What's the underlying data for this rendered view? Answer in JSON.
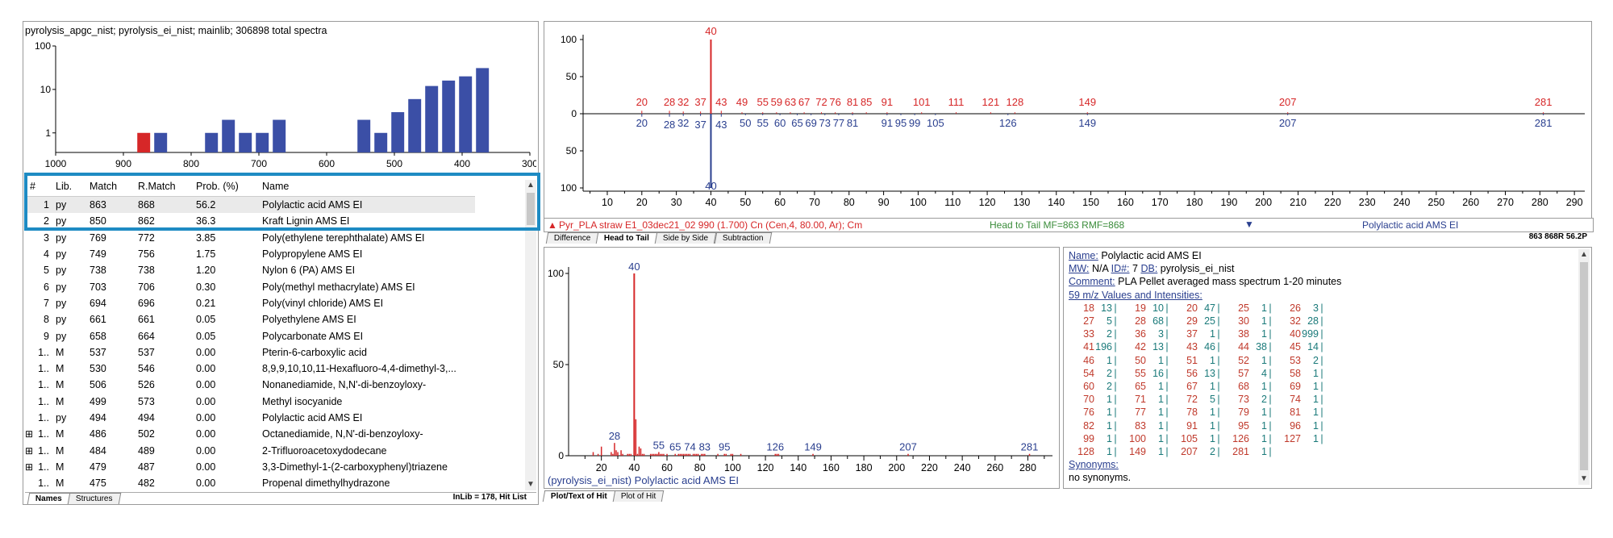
{
  "library_header": "pyrolysis_apgc_nist; pyrolysis_ei_nist; mainlib;  306898 total spectra",
  "histogram": {
    "y_ticks": [
      "100",
      "10",
      "1"
    ],
    "x_ticks": [
      "1000",
      "900",
      "800",
      "700",
      "600",
      "500",
      "400",
      "300"
    ],
    "bars": [
      {
        "x": 870,
        "value": 1,
        "color": "#d62728"
      },
      {
        "x": 845,
        "value": 1,
        "color": "#3b4fa6"
      },
      {
        "x": 770,
        "value": 1,
        "color": "#3b4fa6"
      },
      {
        "x": 745,
        "value": 2,
        "color": "#3b4fa6"
      },
      {
        "x": 720,
        "value": 1,
        "color": "#3b4fa6"
      },
      {
        "x": 695,
        "value": 1,
        "color": "#3b4fa6"
      },
      {
        "x": 670,
        "value": 2,
        "color": "#3b4fa6"
      },
      {
        "x": 545,
        "value": 2,
        "color": "#3b4fa6"
      },
      {
        "x": 520,
        "value": 1,
        "color": "#3b4fa6"
      },
      {
        "x": 495,
        "value": 3,
        "color": "#3b4fa6"
      },
      {
        "x": 470,
        "value": 6,
        "color": "#3b4fa6"
      },
      {
        "x": 445,
        "value": 12,
        "color": "#3b4fa6"
      },
      {
        "x": 420,
        "value": 16,
        "color": "#3b4fa6"
      },
      {
        "x": 395,
        "value": 20,
        "color": "#3b4fa6"
      },
      {
        "x": 370,
        "value": 31,
        "color": "#3b4fa6"
      }
    ]
  },
  "hit_table": {
    "headers": [
      "#",
      "Lib.",
      "Match",
      "R.Match",
      "Prob. (%)",
      "Name"
    ],
    "rows": [
      {
        "n": "1",
        "lib": "py",
        "match": "863",
        "rmatch": "868",
        "prob": "56.2",
        "name": "Polylactic acid AMS EI",
        "exp": ""
      },
      {
        "n": "2",
        "lib": "py",
        "match": "850",
        "rmatch": "862",
        "prob": "36.3",
        "name": "Kraft Lignin AMS EI",
        "exp": ""
      },
      {
        "n": "3",
        "lib": "py",
        "match": "769",
        "rmatch": "772",
        "prob": "3.85",
        "name": "Poly(ethylene terephthalate) AMS EI",
        "exp": ""
      },
      {
        "n": "4",
        "lib": "py",
        "match": "749",
        "rmatch": "756",
        "prob": "1.75",
        "name": "Polypropylene AMS EI",
        "exp": ""
      },
      {
        "n": "5",
        "lib": "py",
        "match": "738",
        "rmatch": "738",
        "prob": "1.20",
        "name": "Nylon 6 (PA) AMS EI",
        "exp": ""
      },
      {
        "n": "6",
        "lib": "py",
        "match": "703",
        "rmatch": "706",
        "prob": "0.30",
        "name": "Poly(methyl methacrylate) AMS EI",
        "exp": ""
      },
      {
        "n": "7",
        "lib": "py",
        "match": "694",
        "rmatch": "696",
        "prob": "0.21",
        "name": "Poly(vinyl chloride) AMS EI",
        "exp": ""
      },
      {
        "n": "8",
        "lib": "py",
        "match": "661",
        "rmatch": "661",
        "prob": "0.05",
        "name": "Polyethylene AMS EI",
        "exp": ""
      },
      {
        "n": "9",
        "lib": "py",
        "match": "658",
        "rmatch": "664",
        "prob": "0.05",
        "name": "Polycarbonate AMS EI",
        "exp": ""
      },
      {
        "n": "1..",
        "lib": "M",
        "match": "537",
        "rmatch": "537",
        "prob": "0.00",
        "name": "Pterin-6-carboxylic acid",
        "exp": ""
      },
      {
        "n": "1..",
        "lib": "M",
        "match": "530",
        "rmatch": "546",
        "prob": "0.00",
        "name": "8,9,9,10,10,11-Hexafluoro-4,4-dimethyl-3,...",
        "exp": ""
      },
      {
        "n": "1..",
        "lib": "M",
        "match": "506",
        "rmatch": "526",
        "prob": "0.00",
        "name": "Nonanediamide, N,N'-di-benzoyloxy-",
        "exp": ""
      },
      {
        "n": "1..",
        "lib": "M",
        "match": "499",
        "rmatch": "573",
        "prob": "0.00",
        "name": "Methyl isocyanide",
        "exp": ""
      },
      {
        "n": "1..",
        "lib": "py",
        "match": "494",
        "rmatch": "494",
        "prob": "0.00",
        "name": "Polylactic acid AMS EI",
        "exp": ""
      },
      {
        "n": "1..",
        "lib": "M",
        "match": "486",
        "rmatch": "502",
        "prob": "0.00",
        "name": "Octanediamide, N,N'-di-benzoyloxy-",
        "exp": "⊞"
      },
      {
        "n": "1..",
        "lib": "M",
        "match": "484",
        "rmatch": "489",
        "prob": "0.00",
        "name": "2-Trifluoroacetoxydodecane",
        "exp": "⊞"
      },
      {
        "n": "1..",
        "lib": "M",
        "match": "479",
        "rmatch": "487",
        "prob": "0.00",
        "name": "3,3-Dimethyl-1-(2-carboxyphenyl)triazene",
        "exp": "⊞"
      },
      {
        "n": "1..",
        "lib": "M",
        "match": "475",
        "rmatch": "482",
        "prob": "0.00",
        "name": "Propenal dimethylhydrazone",
        "exp": ""
      }
    ]
  },
  "left_tabs": [
    "Names",
    "Structures"
  ],
  "left_status": "InLib = 178, Hit List",
  "head_to_tail": {
    "top_peaks": [
      {
        "mz": 20,
        "h": 4
      },
      {
        "mz": 28,
        "h": 4
      },
      {
        "mz": 32,
        "h": 3
      },
      {
        "mz": 37,
        "h": 3
      },
      {
        "mz": 40,
        "h": 100
      },
      {
        "mz": 43,
        "h": 4
      },
      {
        "mz": 49,
        "h": 2
      },
      {
        "mz": 55,
        "h": 2
      },
      {
        "mz": 59,
        "h": 2
      },
      {
        "mz": 63,
        "h": 2
      },
      {
        "mz": 67,
        "h": 2
      },
      {
        "mz": 72,
        "h": 2
      },
      {
        "mz": 76,
        "h": 2
      },
      {
        "mz": 81,
        "h": 2
      },
      {
        "mz": 85,
        "h": 2
      },
      {
        "mz": 91,
        "h": 2
      },
      {
        "mz": 101,
        "h": 2
      },
      {
        "mz": 111,
        "h": 2
      },
      {
        "mz": 121,
        "h": 2
      },
      {
        "mz": 128,
        "h": 2
      },
      {
        "mz": 149,
        "h": 2
      },
      {
        "mz": 207,
        "h": 2
      },
      {
        "mz": 281,
        "h": 2
      }
    ],
    "top_labels": [
      "20",
      "28",
      "32",
      "37",
      "40",
      "43",
      "49",
      "55",
      "59",
      "63",
      "67",
      "72",
      "76",
      "81",
      "85",
      "91",
      "101",
      "111",
      "121",
      "128",
      "149",
      "207",
      "281"
    ],
    "bottom_peaks": [
      {
        "mz": 20,
        "h": 4
      },
      {
        "mz": 28,
        "h": 4
      },
      {
        "mz": 32,
        "h": 3
      },
      {
        "mz": 37,
        "h": 3
      },
      {
        "mz": 40,
        "h": 100
      },
      {
        "mz": 43,
        "h": 4
      },
      {
        "mz": 50,
        "h": 2
      },
      {
        "mz": 55,
        "h": 2
      },
      {
        "mz": 60,
        "h": 2
      },
      {
        "mz": 65,
        "h": 2
      },
      {
        "mz": 69,
        "h": 2
      },
      {
        "mz": 73,
        "h": 2
      },
      {
        "mz": 77,
        "h": 2
      },
      {
        "mz": 81,
        "h": 2
      },
      {
        "mz": 91,
        "h": 2
      },
      {
        "mz": 95,
        "h": 2
      },
      {
        "mz": 99,
        "h": 2
      },
      {
        "mz": 105,
        "h": 2
      },
      {
        "mz": 126,
        "h": 2
      },
      {
        "mz": 149,
        "h": 2
      },
      {
        "mz": 207,
        "h": 2
      },
      {
        "mz": 281,
        "h": 2
      }
    ],
    "bottom_labels": [
      "20",
      "28",
      "32",
      "37",
      "40",
      "43",
      "50",
      "55",
      "60",
      "65",
      "69",
      "73",
      "77",
      "81",
      "91",
      "95",
      "99",
      "105",
      "126",
      "149",
      "207",
      "281"
    ],
    "y_ticks": [
      "100",
      "50",
      "0",
      "50",
      "100"
    ],
    "x_ticks": [
      "10",
      "20",
      "30",
      "40",
      "50",
      "60",
      "70",
      "80",
      "90",
      "100",
      "110",
      "120",
      "130",
      "140",
      "150",
      "160",
      "170",
      "180",
      "190",
      "200",
      "210",
      "220",
      "230",
      "240",
      "250",
      "260",
      "270",
      "280",
      "290"
    ]
  },
  "status_bar": {
    "unknown": "Pyr_PLA straw E1_03dec21_02  990 (1.700) Cn (Cen,4, 80.00, Ar); Cm",
    "match_info": "Head to Tail MF=863 RMF=868",
    "library": "Polylactic acid AMS EI"
  },
  "ht_tabs": [
    "Difference",
    "Head to Tail",
    "Side by Side",
    "Subtraction"
  ],
  "ht_right_status": "863 868R 56.2P",
  "hit_plot": {
    "y_ticks": [
      "100",
      "50",
      "0"
    ],
    "x_ticks": [
      "20",
      "40",
      "60",
      "80",
      "100",
      "120",
      "140",
      "160",
      "180",
      "200",
      "220",
      "240",
      "260",
      "280"
    ],
    "peaks": [
      {
        "mz": 15,
        "h": 2
      },
      {
        "mz": 18,
        "h": 1
      },
      {
        "mz": 20,
        "h": 5
      },
      {
        "mz": 26,
        "h": 2
      },
      {
        "mz": 27,
        "h": 1
      },
      {
        "mz": 28,
        "h": 7
      },
      {
        "mz": 29,
        "h": 3
      },
      {
        "mz": 30,
        "h": 2
      },
      {
        "mz": 32,
        "h": 3
      },
      {
        "mz": 33,
        "h": 1
      },
      {
        "mz": 36,
        "h": 1
      },
      {
        "mz": 37,
        "h": 1
      },
      {
        "mz": 38,
        "h": 1
      },
      {
        "mz": 40,
        "h": 100
      },
      {
        "mz": 41,
        "h": 20
      },
      {
        "mz": 42,
        "h": 1
      },
      {
        "mz": 43,
        "h": 5
      },
      {
        "mz": 44,
        "h": 4
      },
      {
        "mz": 45,
        "h": 1
      },
      {
        "mz": 46,
        "h": 1
      },
      {
        "mz": 50,
        "h": 1
      },
      {
        "mz": 51,
        "h": 1
      },
      {
        "mz": 52,
        "h": 1
      },
      {
        "mz": 53,
        "h": 1
      },
      {
        "mz": 54,
        "h": 1
      },
      {
        "mz": 55,
        "h": 2
      },
      {
        "mz": 56,
        "h": 1
      },
      {
        "mz": 57,
        "h": 1
      },
      {
        "mz": 58,
        "h": 1
      },
      {
        "mz": 60,
        "h": 1
      },
      {
        "mz": 65,
        "h": 1
      },
      {
        "mz": 67,
        "h": 1
      },
      {
        "mz": 68,
        "h": 1
      },
      {
        "mz": 69,
        "h": 1
      },
      {
        "mz": 70,
        "h": 1
      },
      {
        "mz": 71,
        "h": 1
      },
      {
        "mz": 72,
        "h": 1
      },
      {
        "mz": 73,
        "h": 1
      },
      {
        "mz": 74,
        "h": 1
      },
      {
        "mz": 76,
        "h": 1
      },
      {
        "mz": 77,
        "h": 1
      },
      {
        "mz": 78,
        "h": 1
      },
      {
        "mz": 79,
        "h": 1
      },
      {
        "mz": 81,
        "h": 1
      },
      {
        "mz": 82,
        "h": 1
      },
      {
        "mz": 83,
        "h": 1
      },
      {
        "mz": 91,
        "h": 1
      },
      {
        "mz": 95,
        "h": 1
      },
      {
        "mz": 96,
        "h": 1
      },
      {
        "mz": 99,
        "h": 1
      },
      {
        "mz": 100,
        "h": 1
      },
      {
        "mz": 105,
        "h": 1
      },
      {
        "mz": 126,
        "h": 1
      },
      {
        "mz": 127,
        "h": 1
      },
      {
        "mz": 128,
        "h": 1
      },
      {
        "mz": 149,
        "h": 1
      },
      {
        "mz": 207,
        "h": 1
      },
      {
        "mz": 281,
        "h": 1
      }
    ],
    "labels": [
      "40",
      "28",
      "55",
      "65",
      "74",
      "83",
      "95",
      "126",
      "149",
      "207",
      "281"
    ],
    "caption": "(pyrolysis_ei_nist) Polylactic acid AMS EI"
  },
  "hit_tabs": [
    "Plot/Text of Hit",
    "Plot of Hit"
  ],
  "hit_info": {
    "name_label": "Name:",
    "name": "Polylactic acid AMS EI",
    "mw_label": "MW:",
    "mw": "N/A",
    "id_label": "ID#:",
    "id": "7",
    "db_label": "DB:",
    "db": "pyrolysis_ei_nist",
    "comment_label": "Comment:",
    "comment": "PLA Pellet averaged mass spectrum 1-20 minutes",
    "values_label": "59 m/z Values and Intensities:",
    "intensities": [
      [
        [
          "18",
          "13"
        ],
        [
          "19",
          "10"
        ],
        [
          "20",
          "47"
        ],
        [
          "25",
          "1"
        ],
        [
          "26",
          "3"
        ]
      ],
      [
        [
          "27",
          "5"
        ],
        [
          "28",
          "68"
        ],
        [
          "29",
          "25"
        ],
        [
          "30",
          "1"
        ],
        [
          "32",
          "28"
        ]
      ],
      [
        [
          "33",
          "2"
        ],
        [
          "36",
          "3"
        ],
        [
          "37",
          "1"
        ],
        [
          "38",
          "1"
        ],
        [
          "40",
          "999"
        ]
      ],
      [
        [
          "41",
          "196"
        ],
        [
          "42",
          "13"
        ],
        [
          "43",
          "46"
        ],
        [
          "44",
          "38"
        ],
        [
          "45",
          "14"
        ]
      ],
      [
        [
          "46",
          "1"
        ],
        [
          "50",
          "1"
        ],
        [
          "51",
          "1"
        ],
        [
          "52",
          "1"
        ],
        [
          "53",
          "2"
        ]
      ],
      [
        [
          "54",
          "2"
        ],
        [
          "55",
          "16"
        ],
        [
          "56",
          "13"
        ],
        [
          "57",
          "4"
        ],
        [
          "58",
          "1"
        ]
      ],
      [
        [
          "60",
          "2"
        ],
        [
          "65",
          "1"
        ],
        [
          "67",
          "1"
        ],
        [
          "68",
          "1"
        ],
        [
          "69",
          "1"
        ]
      ],
      [
        [
          "70",
          "1"
        ],
        [
          "71",
          "1"
        ],
        [
          "72",
          "5"
        ],
        [
          "73",
          "2"
        ],
        [
          "74",
          "1"
        ]
      ],
      [
        [
          "76",
          "1"
        ],
        [
          "77",
          "1"
        ],
        [
          "78",
          "1"
        ],
        [
          "79",
          "1"
        ],
        [
          "81",
          "1"
        ]
      ],
      [
        [
          "82",
          "1"
        ],
        [
          "83",
          "1"
        ],
        [
          "91",
          "1"
        ],
        [
          "95",
          "1"
        ],
        [
          "96",
          "1"
        ]
      ],
      [
        [
          "99",
          "1"
        ],
        [
          "100",
          "1"
        ],
        [
          "105",
          "1"
        ],
        [
          "126",
          "1"
        ],
        [
          "127",
          "1"
        ]
      ],
      [
        [
          "128",
          "1"
        ],
        [
          "149",
          "1"
        ],
        [
          "207",
          "2"
        ],
        [
          "281",
          "1"
        ]
      ]
    ],
    "synonyms_label": "Synonyms:",
    "synonyms": "no synonyms."
  },
  "colors": {
    "unknown_red": "#d62728",
    "library_blue": "#3b4fa6",
    "highlight": "#1e8bc3",
    "match_green": "#3a8c3a"
  }
}
